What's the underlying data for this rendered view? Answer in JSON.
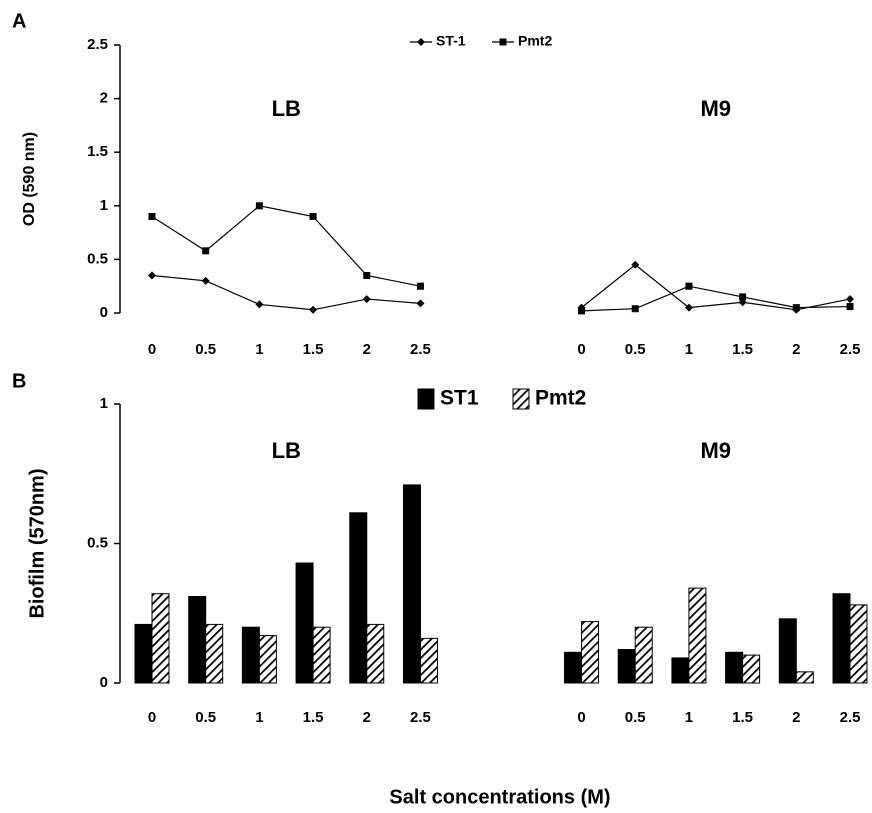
{
  "chart_data": [
    {
      "type": "line",
      "panel": "A",
      "ylabel": "OD (590 nm)",
      "annotations": [
        "LB",
        "M9"
      ],
      "categories": [
        "0",
        "0.5",
        "1",
        "1.5",
        "2",
        "2.5",
        null,
        null,
        "0",
        "0.5",
        "1",
        "1.5",
        "2",
        "2.5"
      ],
      "series": [
        {
          "name": "ST-1",
          "color": "#000000",
          "marker": "diamond",
          "values": [
            0.35,
            0.3,
            0.08,
            0.03,
            0.13,
            0.09,
            null,
            null,
            0.05,
            0.45,
            0.05,
            0.1,
            0.03,
            0.13
          ]
        },
        {
          "name": "Pmt2",
          "color": "#000000",
          "marker": "square",
          "values": [
            0.9,
            0.58,
            1.0,
            0.9,
            0.35,
            0.25,
            null,
            null,
            0.02,
            0.04,
            0.25,
            0.15,
            0.05,
            0.06
          ]
        }
      ],
      "ylim": [
        0,
        2.5
      ],
      "yticks": [
        0,
        0.5,
        1,
        1.5,
        2,
        2.5
      ],
      "legend": "top"
    },
    {
      "type": "bar",
      "panel": "B",
      "ylabel": "Biofilm (570nm)",
      "xlabel": "Salt concentrations (M)",
      "annotations": [
        "LB",
        "M9"
      ],
      "categories": [
        "0",
        "0.5",
        "1",
        "1.5",
        "2",
        "2.5",
        null,
        null,
        "0",
        "0.5",
        "1",
        "1.5",
        "2",
        "2.5"
      ],
      "series": [
        {
          "name": "ST1",
          "color": "#000000",
          "pattern": "solid",
          "values": [
            0.21,
            0.31,
            0.2,
            0.43,
            0.61,
            0.71,
            null,
            null,
            0.11,
            0.12,
            0.09,
            0.11,
            0.23,
            0.32
          ]
        },
        {
          "name": "Pmt2",
          "color": "#000000",
          "pattern": "hatch",
          "values": [
            0.32,
            0.21,
            0.17,
            0.2,
            0.21,
            0.16,
            null,
            null,
            0.22,
            0.2,
            0.34,
            0.1,
            0.04,
            0.28
          ]
        }
      ],
      "ylim": [
        0,
        1
      ],
      "yticks": [
        0,
        0.5,
        1
      ],
      "legend": "top"
    }
  ]
}
